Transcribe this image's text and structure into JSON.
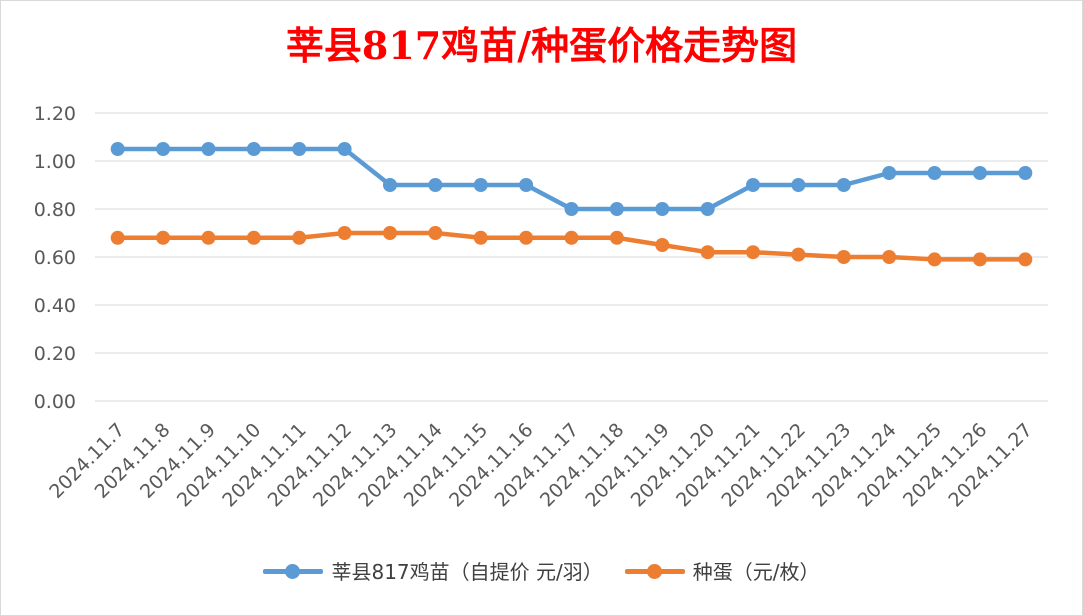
{
  "chart_data": {
    "type": "line",
    "title": "莘县817鸡苗/种蛋价格走势图",
    "categories": [
      "2024.11.7",
      "2024.11.8",
      "2024.11.9",
      "2024.11.10",
      "2024.11.11",
      "2024.11.12",
      "2024.11.13",
      "2024.11.14",
      "2024.11.15",
      "2024.11.16",
      "2024.11.17",
      "2024.11.18",
      "2024.11.19",
      "2024.11.20",
      "2024.11.21",
      "2024.11.22",
      "2024.11.23",
      "2024.11.24",
      "2024.11.25",
      "2024.11.26",
      "2024.11.27"
    ],
    "series": [
      {
        "name": "莘县817鸡苗（自提价 元/羽）",
        "color": "#5b9bd5",
        "values": [
          1.05,
          1.05,
          1.05,
          1.05,
          1.05,
          1.05,
          0.9,
          0.9,
          0.9,
          0.9,
          0.8,
          0.8,
          0.8,
          0.8,
          0.9,
          0.9,
          0.9,
          0.95,
          0.95,
          0.95,
          0.95
        ]
      },
      {
        "name": "种蛋（元/枚）",
        "color": "#ed7d31",
        "values": [
          0.68,
          0.68,
          0.68,
          0.68,
          0.68,
          0.7,
          0.7,
          0.7,
          0.68,
          0.68,
          0.68,
          0.68,
          0.65,
          0.62,
          0.62,
          0.61,
          0.6,
          0.6,
          0.59,
          0.59,
          0.59
        ]
      }
    ],
    "yticks": [
      "0.00",
      "0.20",
      "0.40",
      "0.60",
      "0.80",
      "1.00",
      "1.20"
    ],
    "ylim": [
      0,
      1.2
    ],
    "grid": true,
    "legend": "bottom"
  }
}
